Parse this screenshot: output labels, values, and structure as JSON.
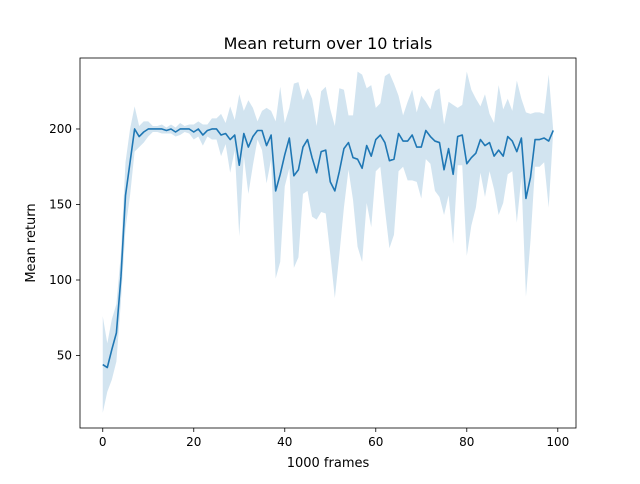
{
  "chart_data": {
    "type": "line",
    "title": "Mean return over 10 trials",
    "xlabel": "1000 frames",
    "ylabel": "Mean return",
    "xlim": [
      -5,
      104
    ],
    "ylim": [
      2,
      247
    ],
    "xticks": [
      0,
      20,
      40,
      60,
      80,
      100
    ],
    "yticks": [
      50,
      100,
      150,
      200
    ],
    "grid": false,
    "colors": {
      "line": "#1f77b4",
      "band": "#1f77b4",
      "band_opacity": 0.2
    },
    "series": [
      {
        "x": [
          0,
          1,
          2,
          3,
          4,
          5,
          6,
          7,
          8,
          9,
          10,
          11,
          12,
          13,
          14,
          15,
          16,
          17,
          18,
          19,
          20,
          21,
          22,
          23,
          24,
          25,
          26,
          27,
          28,
          29,
          30,
          31,
          32,
          33,
          34,
          35,
          36,
          37,
          38,
          39,
          40,
          41,
          42,
          43,
          44,
          45,
          46,
          47,
          48,
          49,
          50,
          51,
          52,
          53,
          54,
          55,
          56,
          57,
          58,
          59,
          60,
          61,
          62,
          63,
          64,
          65,
          66,
          67,
          68,
          69,
          70,
          71,
          72,
          73,
          74,
          75,
          76,
          77,
          78,
          79,
          80,
          81,
          82,
          83,
          84,
          85,
          86,
          87,
          88,
          89,
          90,
          91,
          92,
          93,
          94,
          95,
          96,
          97,
          98,
          99
        ],
        "y": [
          44,
          42,
          54,
          65,
          102,
          156,
          178,
          200,
          195,
          198,
          200,
          200,
          200,
          200,
          199,
          200,
          198,
          200,
          200,
          200,
          198,
          200,
          196,
          199,
          200,
          200,
          196,
          197,
          193,
          196,
          176,
          197,
          188,
          195,
          199,
          199,
          189,
          196,
          159,
          170,
          183,
          194,
          169,
          173,
          188,
          193,
          181,
          171,
          185,
          186,
          165,
          159,
          172,
          187,
          191,
          181,
          180,
          174,
          189,
          182,
          193,
          196,
          191,
          179,
          180,
          197,
          192,
          192,
          196,
          188,
          188,
          199,
          195,
          192,
          191,
          173,
          187,
          170,
          195,
          196,
          177,
          181,
          184,
          193,
          189,
          191,
          182,
          186,
          182,
          195,
          192,
          185,
          194,
          154,
          168,
          193,
          193,
          194,
          192,
          199
        ],
        "upper": [
          76,
          58,
          74,
          84,
          118,
          178,
          200,
          215,
          202,
          205,
          205,
          202,
          202,
          203,
          201,
          203,
          201,
          204,
          202,
          203,
          203,
          205,
          203,
          203,
          207,
          207,
          210,
          204,
          215,
          206,
          223,
          212,
          219,
          214,
          205,
          212,
          214,
          212,
          205,
          228,
          204,
          214,
          230,
          231,
          219,
          227,
          220,
          202,
          225,
          228,
          213,
          202,
          227,
          226,
          209,
          209,
          238,
          236,
          227,
          229,
          214,
          217,
          235,
          237,
          230,
          222,
          209,
          218,
          226,
          211,
          222,
          218,
          213,
          225,
          227,
          203,
          218,
          216,
          214,
          216,
          238,
          226,
          220,
          215,
          223,
          210,
          204,
          229,
          213,
          220,
          212,
          232,
          220,
          211,
          210,
          211,
          211,
          210,
          236,
          199
        ],
        "lower": [
          12,
          26,
          34,
          46,
          86,
          134,
          156,
          185,
          188,
          191,
          195,
          198,
          198,
          197,
          197,
          197,
          195,
          196,
          198,
          197,
          193,
          195,
          189,
          195,
          193,
          193,
          182,
          190,
          171,
          186,
          129,
          182,
          157,
          176,
          193,
          186,
          164,
          180,
          101,
          112,
          162,
          174,
          108,
          115,
          157,
          159,
          142,
          140,
          145,
          144,
          117,
          88,
          117,
          148,
          173,
          153,
          122,
          112,
          151,
          135,
          172,
          175,
          147,
          121,
          130,
          172,
          175,
          166,
          166,
          165,
          154,
          180,
          177,
          159,
          155,
          143,
          156,
          124,
          176,
          176,
          116,
          136,
          148,
          171,
          155,
          172,
          160,
          143,
          151,
          170,
          172,
          138,
          168,
          89,
          126,
          175,
          175,
          178,
          148,
          199
        ]
      }
    ]
  }
}
